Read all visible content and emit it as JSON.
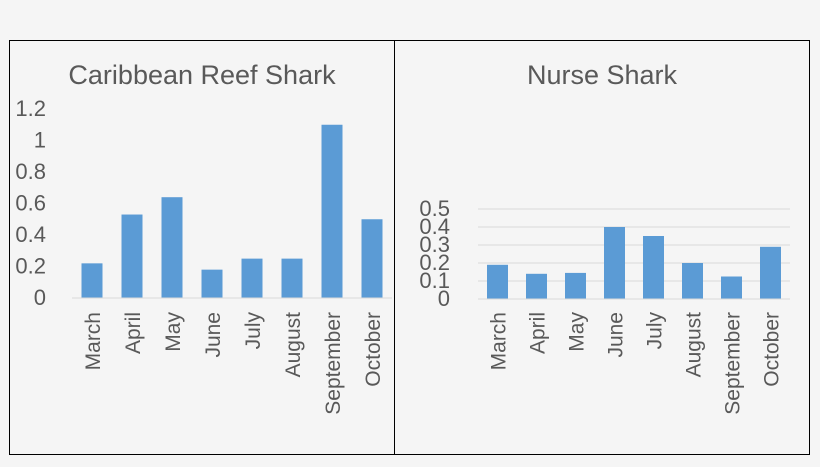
{
  "chart_data": [
    {
      "type": "bar",
      "title": "Caribbean Reef Shark",
      "categories": [
        "March",
        "April",
        "May",
        "June",
        "July",
        "August",
        "September",
        "October"
      ],
      "values": [
        0.22,
        0.53,
        0.64,
        0.18,
        0.25,
        0.25,
        1.1,
        0.5
      ],
      "ylim": [
        0,
        1.2
      ],
      "yticks": [
        "0",
        "0.2",
        "0.4",
        "0.6",
        "0.8",
        "1",
        "1.2"
      ],
      "xlabel": "",
      "ylabel": "",
      "grid": false,
      "bar_color": "#5b9bd5"
    },
    {
      "type": "bar",
      "title": "Nurse Shark",
      "categories": [
        "March",
        "April",
        "May",
        "June",
        "July",
        "August",
        "September",
        "October"
      ],
      "values": [
        0.19,
        0.14,
        0.145,
        0.4,
        0.35,
        0.2,
        0.125,
        0.29
      ],
      "ylim": [
        0,
        0.5
      ],
      "yticks": [
        "0",
        "0.1",
        "0.2",
        "0.3",
        "0.4",
        "0.5"
      ],
      "xlabel": "",
      "ylabel": "",
      "grid": true,
      "bar_color": "#5b9bd5"
    }
  ],
  "colors": {
    "bar": "#5b9bd5",
    "text": "#595959",
    "border": "#000000",
    "gridline": "#d9d9d9"
  }
}
